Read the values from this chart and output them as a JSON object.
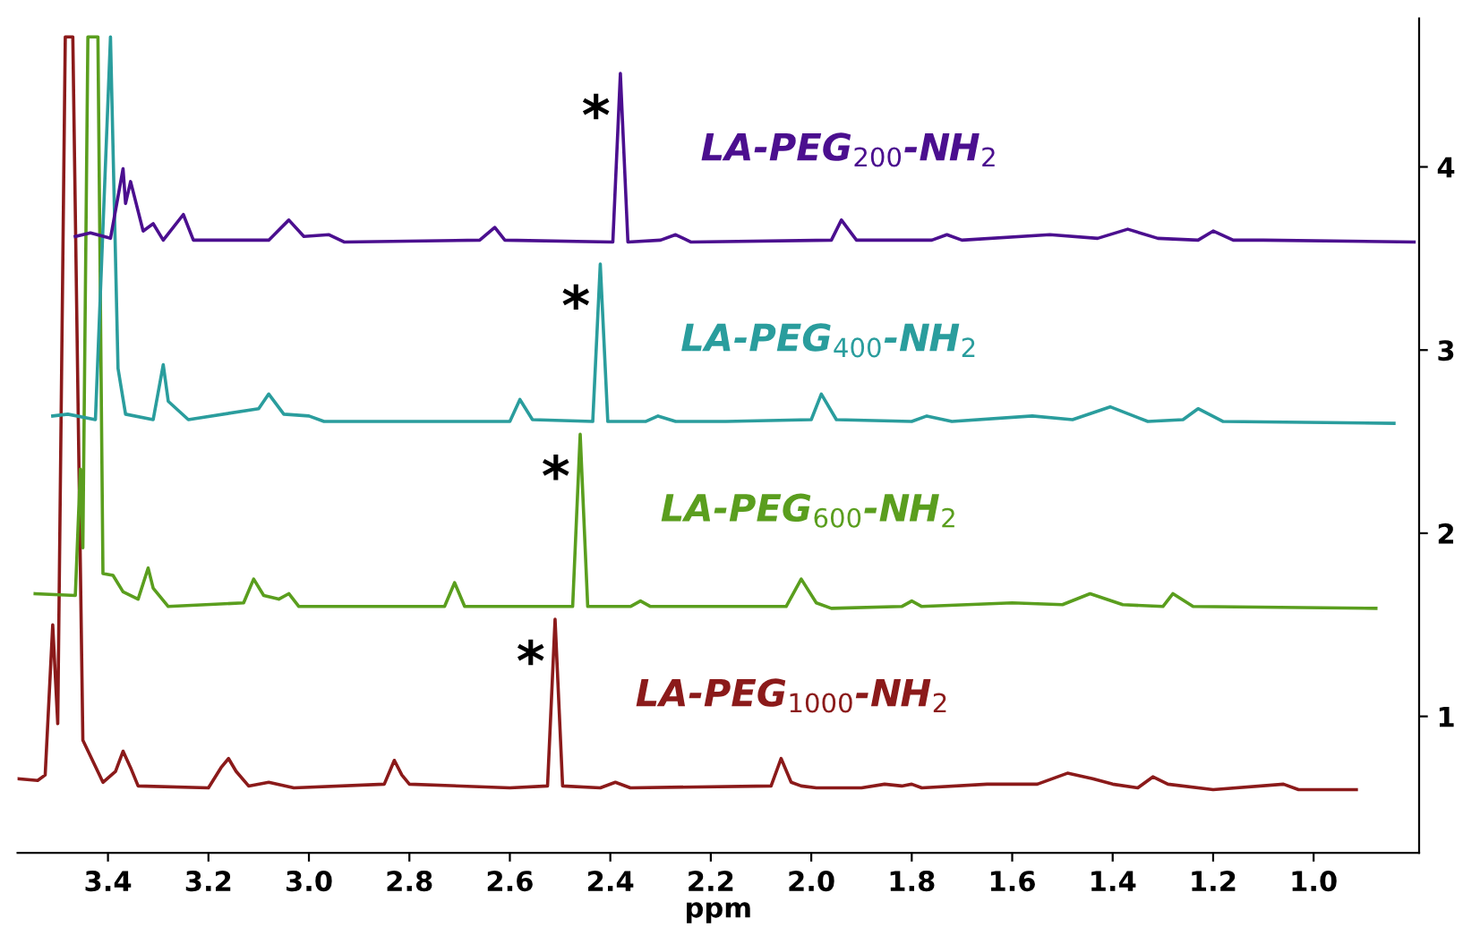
{
  "chart_data": {
    "type": "line",
    "xlabel": "ppm",
    "xlim": [
      3.58,
      0.79
    ],
    "xticks": [
      3.4,
      3.2,
      {
        "value": 3,
        "label": "3.0"
      },
      2.8,
      2.6,
      2.4,
      2.2,
      {
        "value": 2,
        "label": "2.0"
      },
      1.8,
      1.6,
      1.4,
      1.2,
      {
        "value": 1,
        "label": "1.0"
      }
    ],
    "ylim": [
      0.255,
      4.81
    ],
    "yticks": [
      1,
      2,
      3,
      4
    ],
    "grid": false,
    "legend": false,
    "marker": "none",
    "line_style": "solid",
    "series": [
      {
        "name": "LA-PEG$_{1000}$-NH$_{2}$",
        "color": "#8b1a1a",
        "x": [
          3.58,
          3.54,
          3.525,
          3.51,
          3.5,
          3.485,
          3.47,
          3.45,
          3.41,
          3.385,
          3.37,
          3.355,
          3.34,
          3.2,
          3.175,
          3.16,
          3.145,
          3.12,
          3.08,
          3.03,
          2.85,
          2.83,
          2.815,
          2.8,
          2.6,
          2.525,
          2.51,
          2.495,
          2.42,
          2.39,
          2.36,
          2.08,
          2.06,
          2.04,
          2.02,
          1.99,
          1.9,
          1.854,
          1.82,
          1.8,
          1.78,
          1.65,
          1.55,
          1.49,
          1.44,
          1.4,
          1.35,
          1.32,
          1.29,
          1.2,
          1.06,
          1.03,
          0.915
        ],
        "values": [
          0.66,
          0.65,
          0.68,
          1.5,
          0.96,
          4.71,
          4.71,
          0.87,
          0.64,
          0.7,
          0.81,
          0.72,
          0.62,
          0.61,
          0.72,
          0.77,
          0.7,
          0.62,
          0.64,
          0.61,
          0.63,
          0.76,
          0.68,
          0.63,
          0.61,
          0.62,
          1.53,
          0.62,
          0.61,
          0.64,
          0.61,
          0.62,
          0.77,
          0.64,
          0.62,
          0.61,
          0.61,
          0.63,
          0.62,
          0.63,
          0.61,
          0.63,
          0.63,
          0.69,
          0.66,
          0.63,
          0.61,
          0.67,
          0.63,
          0.6,
          0.63,
          0.6,
          0.6
        ]
      },
      {
        "name": "LA-PEG$_{600}$-NH$_{2}$",
        "color": "#5a9e1e",
        "x": [
          3.545,
          3.465,
          3.455,
          3.45,
          3.44,
          3.42,
          3.41,
          3.39,
          3.37,
          3.34,
          3.32,
          3.31,
          3.28,
          3.13,
          3.11,
          3.09,
          3.06,
          3.04,
          3.02,
          2.73,
          2.71,
          2.69,
          2.475,
          2.46,
          2.445,
          2.36,
          2.34,
          2.32,
          2.05,
          2.02,
          1.99,
          1.96,
          1.82,
          1.8,
          1.78,
          1.6,
          1.5,
          1.445,
          1.38,
          1.3,
          1.28,
          1.24,
          0.876
        ],
        "values": [
          1.67,
          1.66,
          2.35,
          1.92,
          4.71,
          4.71,
          1.78,
          1.77,
          1.68,
          1.64,
          1.81,
          1.7,
          1.6,
          1.62,
          1.75,
          1.66,
          1.64,
          1.67,
          1.6,
          1.6,
          1.73,
          1.6,
          1.6,
          2.54,
          1.6,
          1.6,
          1.63,
          1.6,
          1.6,
          1.75,
          1.62,
          1.59,
          1.6,
          1.63,
          1.6,
          1.62,
          1.61,
          1.67,
          1.61,
          1.6,
          1.67,
          1.6,
          1.59
        ]
      },
      {
        "name": "LA-PEG$_{400}$-NH$_{2}$",
        "color": "#2a9d9d",
        "x": [
          3.51,
          3.48,
          3.425,
          3.395,
          3.38,
          3.365,
          3.31,
          3.29,
          3.28,
          3.24,
          3.1,
          3.08,
          3.05,
          3.0,
          2.97,
          2.6,
          2.58,
          2.555,
          2.435,
          2.42,
          2.405,
          2.33,
          2.305,
          2.27,
          2.17,
          2.0,
          1.98,
          1.95,
          1.8,
          1.77,
          1.72,
          1.56,
          1.48,
          1.405,
          1.33,
          1.26,
          1.23,
          1.18,
          0.84
        ],
        "values": [
          2.64,
          2.65,
          2.62,
          4.71,
          2.9,
          2.65,
          2.62,
          2.92,
          2.72,
          2.62,
          2.68,
          2.76,
          2.65,
          2.64,
          2.61,
          2.61,
          2.73,
          2.62,
          2.61,
          3.47,
          2.61,
          2.61,
          2.64,
          2.61,
          2.61,
          2.62,
          2.76,
          2.62,
          2.61,
          2.64,
          2.61,
          2.64,
          2.62,
          2.69,
          2.61,
          2.62,
          2.68,
          2.61,
          2.6
        ]
      },
      {
        "name": "LA-PEG$_{200}$-NH$_{2}$",
        "color": "#4b0f8f",
        "x": [
          3.465,
          3.435,
          3.395,
          3.37,
          3.365,
          3.355,
          3.33,
          3.31,
          3.29,
          3.25,
          3.23,
          3.08,
          3.04,
          3.01,
          2.96,
          2.93,
          2.66,
          2.63,
          2.61,
          2.395,
          2.38,
          2.365,
          2.3,
          2.27,
          2.24,
          1.96,
          1.94,
          1.91,
          1.76,
          1.73,
          1.7,
          1.525,
          1.43,
          1.37,
          1.31,
          1.23,
          1.2,
          1.16,
          1.1,
          0.8
        ],
        "values": [
          3.62,
          3.64,
          3.61,
          3.99,
          3.8,
          3.92,
          3.65,
          3.69,
          3.6,
          3.74,
          3.6,
          3.6,
          3.71,
          3.62,
          3.63,
          3.59,
          3.6,
          3.67,
          3.6,
          3.59,
          4.51,
          3.59,
          3.6,
          3.63,
          3.59,
          3.6,
          3.71,
          3.6,
          3.6,
          3.63,
          3.6,
          3.63,
          3.61,
          3.66,
          3.61,
          3.6,
          3.65,
          3.6,
          3.6,
          3.59
        ]
      }
    ],
    "annotations": [
      {
        "text": "*",
        "x": 2.51,
        "y": 1.53
      },
      {
        "text": "*",
        "x": 2.46,
        "y": 2.54
      },
      {
        "text": "*",
        "x": 2.42,
        "y": 3.47
      },
      {
        "text": "*",
        "x": 2.38,
        "y": 4.51
      }
    ]
  }
}
